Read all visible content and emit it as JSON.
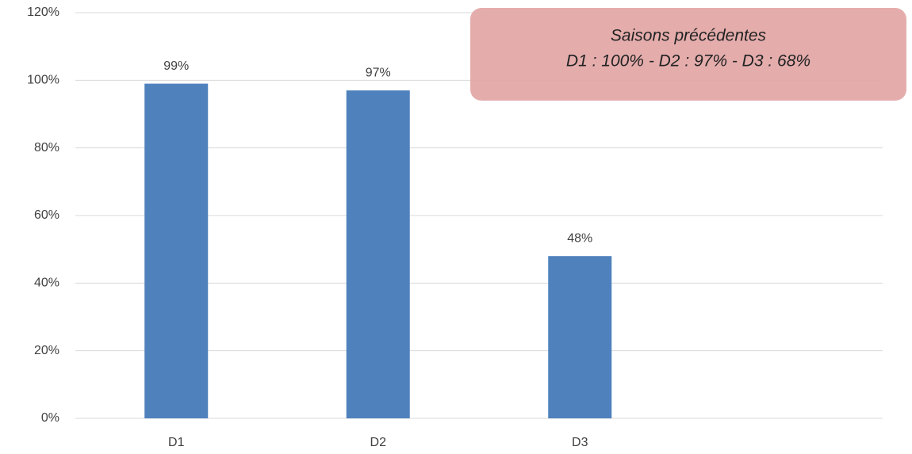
{
  "chart_data": {
    "type": "bar",
    "categories": [
      "D1",
      "D2",
      "D3",
      null
    ],
    "values": [
      99,
      97,
      48,
      null
    ],
    "value_labels": [
      "99%",
      "97%",
      "48%",
      null
    ],
    "color": "#4f81bd",
    "ylim": [
      0,
      120
    ],
    "yticks": [
      {
        "value": 0,
        "label": "0%"
      },
      {
        "value": 20,
        "label": "20%"
      },
      {
        "value": 40,
        "label": "40%"
      },
      {
        "value": 60,
        "label": "60%"
      },
      {
        "value": 80,
        "label": "80%"
      },
      {
        "value": 100,
        "label": "100%"
      },
      {
        "value": 120,
        "label": "120%"
      }
    ],
    "grid": true,
    "annotations": [
      "Saisons précédentes",
      "D1 : 100% - D2 : 97% - D3 : 68%"
    ],
    "annotation_color": "#e2a6a5"
  }
}
